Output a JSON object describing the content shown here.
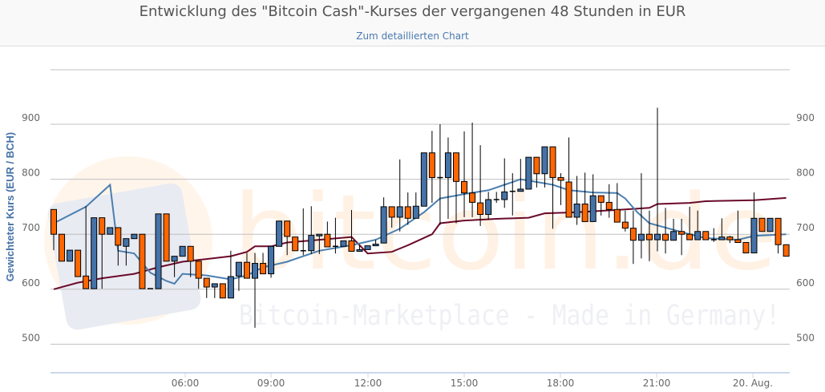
{
  "header": {
    "title": "Entwicklung des \"Bitcoin Cash\"-Kurses der vergangenen 48 Stunden in EUR",
    "link": "Zum detaillierten Chart"
  },
  "watermark": {
    "logo": "bitcoin.de",
    "slogan": "Bitcoin-Marketplace - Made in Germany!"
  },
  "colors": {
    "up": "#4572a7",
    "down": "#ff6600",
    "ma_short": "#4a7fb0",
    "ma_long": "#6b0a2a",
    "grid": "#c0c0c0",
    "axis": "#ccd6eb"
  },
  "chart_data": {
    "type": "candlestick",
    "title": "Entwicklung des \"Bitcoin Cash\"-Kurses der vergangenen 48 Stunden in EUR",
    "ylabel": "Gewichteter Kurs (EUR / BCH)",
    "ylim": [
      450,
      1000
    ],
    "yticks": [
      500,
      600,
      700,
      800,
      900
    ],
    "xticks": [
      "06:00",
      "09:00",
      "12:00",
      "15:00",
      "18:00",
      "21:00",
      "20. Aug."
    ],
    "grid": true,
    "candles_ohlc": [
      [
        745,
        745,
        671,
        700
      ],
      [
        700,
        700,
        651,
        651
      ],
      [
        651,
        671,
        651,
        671
      ],
      [
        671,
        671,
        623,
        623
      ],
      [
        624,
        751,
        601,
        601
      ],
      [
        601,
        730,
        601,
        730
      ],
      [
        730,
        730,
        601,
        700
      ],
      [
        700,
        712,
        700,
        712
      ],
      [
        712,
        712,
        643,
        680
      ],
      [
        678,
        692,
        643,
        692
      ],
      [
        692,
        700,
        692,
        700
      ],
      [
        700,
        700,
        601,
        601
      ],
      [
        601,
        601,
        601,
        601
      ],
      [
        601,
        737,
        601,
        737
      ],
      [
        737,
        737,
        651,
        651
      ],
      [
        651,
        660,
        622,
        660
      ],
      [
        660,
        678,
        660,
        678
      ],
      [
        678,
        678,
        622,
        651
      ],
      [
        651,
        651,
        601,
        620
      ],
      [
        620,
        620,
        584,
        604
      ],
      [
        604,
        610,
        584,
        610
      ],
      [
        610,
        610,
        584,
        584
      ],
      [
        584,
        670,
        584,
        623
      ],
      [
        624,
        649,
        597,
        649
      ],
      [
        649,
        666,
        620,
        620
      ],
      [
        620,
        666,
        530,
        647
      ],
      [
        647,
        666,
        628,
        628
      ],
      [
        628,
        678,
        621,
        678
      ],
      [
        678,
        724,
        678,
        724
      ],
      [
        724,
        724,
        662,
        696
      ],
      [
        695,
        695,
        670,
        670
      ],
      [
        670,
        747,
        662,
        670
      ],
      [
        670,
        751,
        664,
        698
      ],
      [
        697,
        700,
        664,
        700
      ],
      [
        700,
        723,
        677,
        677
      ],
      [
        678,
        730,
        665,
        678
      ],
      [
        678,
        688,
        678,
        688
      ],
      [
        688,
        744,
        669,
        669
      ],
      [
        669,
        680,
        669,
        672
      ],
      [
        672,
        679,
        672,
        679
      ],
      [
        679,
        690,
        679,
        682
      ],
      [
        684,
        767,
        684,
        750
      ],
      [
        750,
        750,
        712,
        731
      ],
      [
        731,
        836,
        705,
        750
      ],
      [
        750,
        776,
        717,
        729
      ],
      [
        729,
        776,
        729,
        751
      ],
      [
        751,
        848,
        751,
        848
      ],
      [
        848,
        888,
        757,
        803
      ],
      [
        803,
        900,
        717,
        803
      ],
      [
        803,
        876,
        728,
        848
      ],
      [
        848,
        848,
        720,
        796
      ],
      [
        796,
        887,
        731,
        775
      ],
      [
        775,
        903,
        731,
        758
      ],
      [
        757,
        862,
        715,
        736
      ],
      [
        736,
        777,
        726,
        763
      ],
      [
        763,
        777,
        757,
        763
      ],
      [
        763,
        838,
        748,
        777
      ],
      [
        778,
        811,
        734,
        778
      ],
      [
        778,
        837,
        778,
        782
      ],
      [
        782,
        840,
        782,
        840
      ],
      [
        840,
        840,
        785,
        810
      ],
      [
        810,
        859,
        785,
        859
      ],
      [
        859,
        859,
        710,
        803
      ],
      [
        803,
        811,
        753,
        798
      ],
      [
        795,
        876,
        731,
        731
      ],
      [
        731,
        806,
        717,
        755
      ],
      [
        755,
        812,
        723,
        723
      ],
      [
        723,
        809,
        723,
        770
      ],
      [
        770,
        770,
        734,
        758
      ],
      [
        758,
        791,
        730,
        745
      ],
      [
        745,
        793,
        722,
        722
      ],
      [
        722,
        743,
        705,
        711
      ],
      [
        711,
        743,
        646,
        689
      ],
      [
        689,
        811,
        656,
        700
      ],
      [
        700,
        743,
        651,
        690
      ],
      [
        690,
        930,
        669,
        700
      ],
      [
        700,
        748,
        665,
        689
      ],
      [
        689,
        728,
        689,
        705
      ],
      [
        705,
        728,
        662,
        700
      ],
      [
        700,
        750,
        690,
        690
      ],
      [
        690,
        743,
        690,
        705
      ],
      [
        705,
        705,
        690,
        690
      ],
      [
        690,
        711,
        686,
        690
      ],
      [
        690,
        729,
        690,
        695
      ],
      [
        695,
        697,
        684,
        690
      ],
      [
        690,
        743,
        685,
        685
      ],
      [
        685,
        685,
        666,
        666
      ],
      [
        666,
        776,
        666,
        729
      ],
      [
        729,
        729,
        705,
        705
      ],
      [
        705,
        729,
        705,
        729
      ],
      [
        729,
        729,
        665,
        681
      ],
      [
        681,
        681,
        660,
        660
      ]
    ],
    "ma_short_points": [
      [
        0,
        720
      ],
      [
        4,
        750
      ],
      [
        7,
        790
      ],
      [
        8,
        670
      ],
      [
        10,
        665
      ],
      [
        12,
        630
      ],
      [
        14,
        615
      ],
      [
        15,
        610
      ],
      [
        16,
        628
      ],
      [
        19,
        625
      ],
      [
        22,
        618
      ],
      [
        24,
        625
      ],
      [
        26,
        640
      ],
      [
        29,
        650
      ],
      [
        31,
        660
      ],
      [
        33,
        670
      ],
      [
        37,
        680
      ],
      [
        40,
        690
      ],
      [
        43,
        710
      ],
      [
        46,
        740
      ],
      [
        48,
        765
      ],
      [
        51,
        773
      ],
      [
        54,
        780
      ],
      [
        56,
        790
      ],
      [
        58,
        800
      ],
      [
        60,
        795
      ],
      [
        62,
        790
      ],
      [
        64,
        780
      ],
      [
        67,
        776
      ],
      [
        70,
        775
      ],
      [
        71,
        765
      ],
      [
        72.5,
        740
      ],
      [
        74,
        720
      ],
      [
        77,
        708
      ],
      [
        79,
        700
      ],
      [
        81,
        693
      ],
      [
        85,
        690
      ],
      [
        87,
        697
      ],
      [
        91,
        700
      ]
    ],
    "ma_long_points": [
      [
        0,
        600
      ],
      [
        3,
        612
      ],
      [
        6,
        620
      ],
      [
        10,
        628
      ],
      [
        13,
        640
      ],
      [
        16,
        650
      ],
      [
        19,
        655
      ],
      [
        22,
        660
      ],
      [
        24,
        668
      ],
      [
        25,
        678
      ],
      [
        27,
        678
      ],
      [
        29,
        685
      ],
      [
        33,
        690
      ],
      [
        37,
        695
      ],
      [
        39,
        665
      ],
      [
        42,
        668
      ],
      [
        44,
        680
      ],
      [
        47,
        700
      ],
      [
        48,
        720
      ],
      [
        51,
        725
      ],
      [
        55,
        728
      ],
      [
        59,
        730
      ],
      [
        61,
        738
      ],
      [
        65,
        740
      ],
      [
        71,
        745
      ],
      [
        74,
        748
      ],
      [
        75,
        755
      ],
      [
        79,
        757
      ],
      [
        81,
        760
      ],
      [
        87,
        762
      ],
      [
        91,
        766
      ]
    ]
  }
}
